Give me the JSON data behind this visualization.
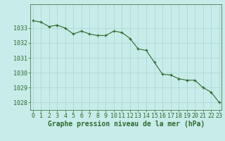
{
  "x": [
    0,
    1,
    2,
    3,
    4,
    5,
    6,
    7,
    8,
    9,
    10,
    11,
    12,
    13,
    14,
    15,
    16,
    17,
    18,
    19,
    20,
    21,
    22,
    23
  ],
  "y": [
    1033.5,
    1033.4,
    1033.1,
    1033.2,
    1033.0,
    1032.6,
    1032.8,
    1032.6,
    1032.5,
    1032.5,
    1032.8,
    1032.7,
    1032.3,
    1031.6,
    1031.5,
    1030.7,
    1029.9,
    1029.85,
    1029.6,
    1029.5,
    1029.5,
    1029.0,
    1028.7,
    1028.0
  ],
  "line_color": "#2d6a2d",
  "marker_color": "#2d6a2d",
  "bg_color": "#c8ecea",
  "grid_color_major": "#a8d4d0",
  "grid_color_minor": "#b8e4e0",
  "axis_label_color": "#2d6a2d",
  "tick_color": "#2d6a2d",
  "ylim_min": 1027.5,
  "ylim_max": 1034.6,
  "yticks": [
    1028,
    1029,
    1030,
    1031,
    1032,
    1033
  ],
  "xticks": [
    0,
    1,
    2,
    3,
    4,
    5,
    6,
    7,
    8,
    9,
    10,
    11,
    12,
    13,
    14,
    15,
    16,
    17,
    18,
    19,
    20,
    21,
    22,
    23
  ],
  "xlabel": "Graphe pression niveau de la mer (hPa)",
  "tick_fontsize": 6,
  "xlabel_fontsize": 7
}
